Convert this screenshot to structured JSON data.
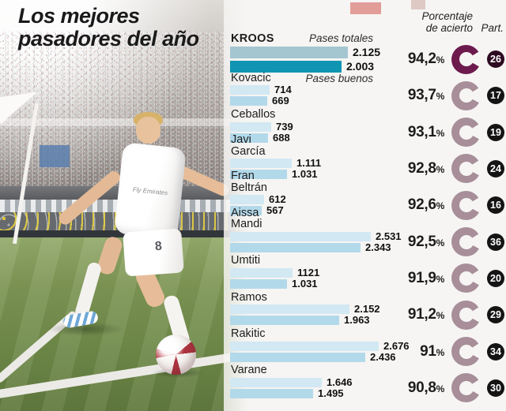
{
  "title": {
    "line1": "Los mejores",
    "line2": "pasadores del año"
  },
  "chart": {
    "bar1_header": "Pases totales",
    "bar2_header": "Pases buenos",
    "pct_header_line1": "Porcentaje",
    "pct_header_line2": "de acierto",
    "part_header": "Part.",
    "pct_suffix": "%"
  },
  "colors": {
    "bar1": "#d2e8f3",
    "bar2": "#b2d9ea",
    "bar1_highlight": "#a4c6d1",
    "bar2_highlight": "#0f95b2",
    "ring": "#a78e99",
    "ring_highlight": "#6d1a4d",
    "badge": "#141414",
    "badge_highlight": "#2d0a1f"
  },
  "photo": {
    "jersey_text": "Fly Emirates",
    "shorts_number": "8"
  },
  "chart_data": {
    "type": "bar",
    "orientation": "horizontal",
    "title": "Los mejores pasadores del año",
    "series_labels": [
      "Pases totales",
      "Pases buenos"
    ],
    "x_max_value": 2676,
    "players": [
      {
        "name": "KROOS",
        "lines": [
          "KROOS"
        ],
        "totales": 2125,
        "totales_label": "2.125",
        "buenos": 2003,
        "buenos_label": "2.003",
        "pct": "94,2",
        "part": "26",
        "highlight": true
      },
      {
        "name": "Kovacic",
        "lines": [
          "Kovacic"
        ],
        "totales": 714,
        "totales_label": "714",
        "buenos": 669,
        "buenos_label": "669",
        "pct": "93,7",
        "part": "17"
      },
      {
        "name": "Ceballos",
        "lines": [
          "Ceballos"
        ],
        "totales": 739,
        "totales_label": "739",
        "buenos": 688,
        "buenos_label": "688",
        "pct": "93,1",
        "part": "19"
      },
      {
        "name": "Javi García",
        "lines": [
          "Javi",
          "García"
        ],
        "totales": 1111,
        "totales_label": "1.111",
        "buenos": 1031,
        "buenos_label": "1.031",
        "pct": "92,8",
        "part": "24"
      },
      {
        "name": "Fran Beltrán",
        "lines": [
          "Fran",
          "Beltrán"
        ],
        "totales": 612,
        "totales_label": "612",
        "buenos": 567,
        "buenos_label": "567",
        "pct": "92,6",
        "part": "16"
      },
      {
        "name": "Aissa Mandi",
        "lines": [
          "Aissa",
          "Mandi"
        ],
        "totales": 2531,
        "totales_label": "2.531",
        "buenos": 2343,
        "buenos_label": "2.343",
        "pct": "92,5",
        "part": "36"
      },
      {
        "name": "Umtiti",
        "lines": [
          "Umtiti"
        ],
        "totales": 1121,
        "totales_label": "1121",
        "buenos": 1031,
        "buenos_label": "1.031",
        "pct": "91,9",
        "part": "20"
      },
      {
        "name": "Ramos",
        "lines": [
          "Ramos"
        ],
        "totales": 2152,
        "totales_label": "2.152",
        "buenos": 1963,
        "buenos_label": "1.963",
        "pct": "91,2",
        "part": "29"
      },
      {
        "name": "Rakitic",
        "lines": [
          "Rakitic"
        ],
        "totales": 2676,
        "totales_label": "2.676",
        "buenos": 2436,
        "buenos_label": "2.436",
        "pct": "91",
        "part": "34"
      },
      {
        "name": "Varane",
        "lines": [
          "Varane"
        ],
        "totales": 1646,
        "totales_label": "1.646",
        "buenos": 1495,
        "buenos_label": "1.495",
        "pct": "90,8",
        "part": "30"
      }
    ]
  }
}
